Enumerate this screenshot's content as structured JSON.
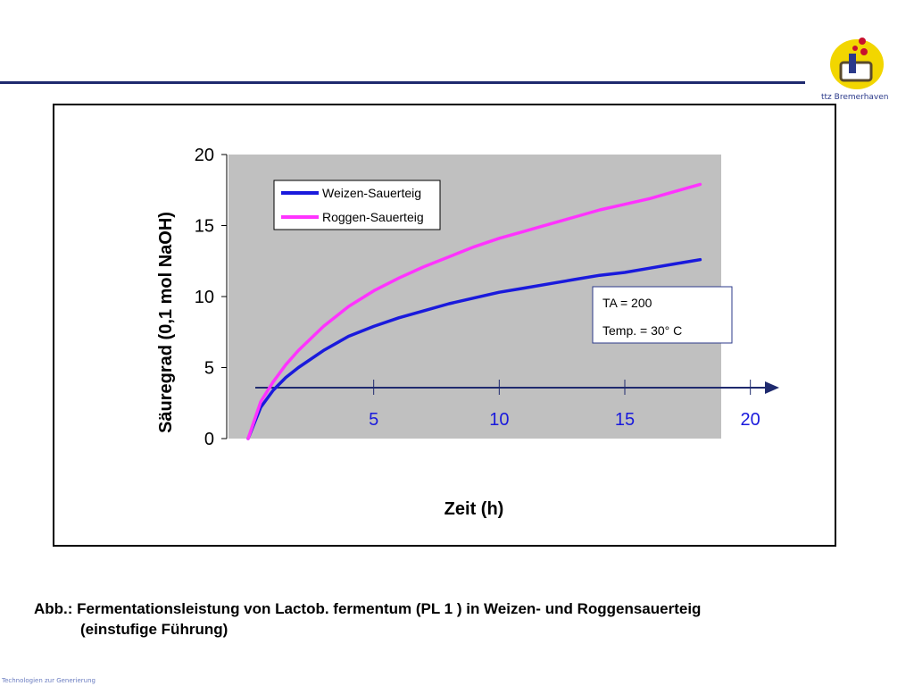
{
  "logo": {
    "text": "ttz Bremerhaven"
  },
  "caption": {
    "line1": "Abb.: Fermentationsleistung von Lactob. fermentum (PL 1 ) in Weizen- und Roggensauerteig",
    "line2": "(einstufige Führung)"
  },
  "footer": {
    "text": "Technologien zur Generierung"
  },
  "chart_data": {
    "type": "line",
    "title": "",
    "xlabel": "Zeit (h)",
    "ylabel": "Säuregrad (0,1 mol NaOH)",
    "xlim": [
      0,
      20
    ],
    "ylim": [
      0,
      20
    ],
    "x_ticks": [
      "5",
      "10",
      "15",
      "20"
    ],
    "y_ticks": [
      "0",
      "5",
      "10",
      "15",
      "20"
    ],
    "legend_position": "top-left",
    "plot_background": "#c0c0c0",
    "annotation": {
      "line1": "TA = 200",
      "line2": "Temp. = 30° C"
    },
    "series": [
      {
        "name": "Weizen-Sauerteig",
        "color": "#1a1adc",
        "x": [
          0,
          0.5,
          1,
          1.5,
          2,
          3,
          4,
          5,
          6,
          7,
          8,
          9,
          10,
          11,
          12,
          13,
          14,
          15,
          16,
          17,
          18
        ],
        "y": [
          0,
          2.2,
          3.4,
          4.3,
          5.0,
          6.2,
          7.2,
          7.9,
          8.5,
          9.0,
          9.5,
          9.9,
          10.3,
          10.6,
          10.9,
          11.2,
          11.5,
          11.7,
          12.0,
          12.3,
          12.6
        ]
      },
      {
        "name": "Roggen-Sauerteig",
        "color": "#ff33ff",
        "x": [
          0,
          0.5,
          1,
          1.5,
          2,
          3,
          4,
          5,
          6,
          7,
          8,
          9,
          10,
          11,
          12,
          13,
          14,
          15,
          16,
          17,
          18
        ],
        "y": [
          0,
          2.6,
          4.0,
          5.2,
          6.2,
          7.9,
          9.3,
          10.4,
          11.3,
          12.1,
          12.8,
          13.5,
          14.1,
          14.6,
          15.1,
          15.6,
          16.1,
          16.5,
          16.9,
          17.4,
          17.9
        ]
      }
    ]
  }
}
